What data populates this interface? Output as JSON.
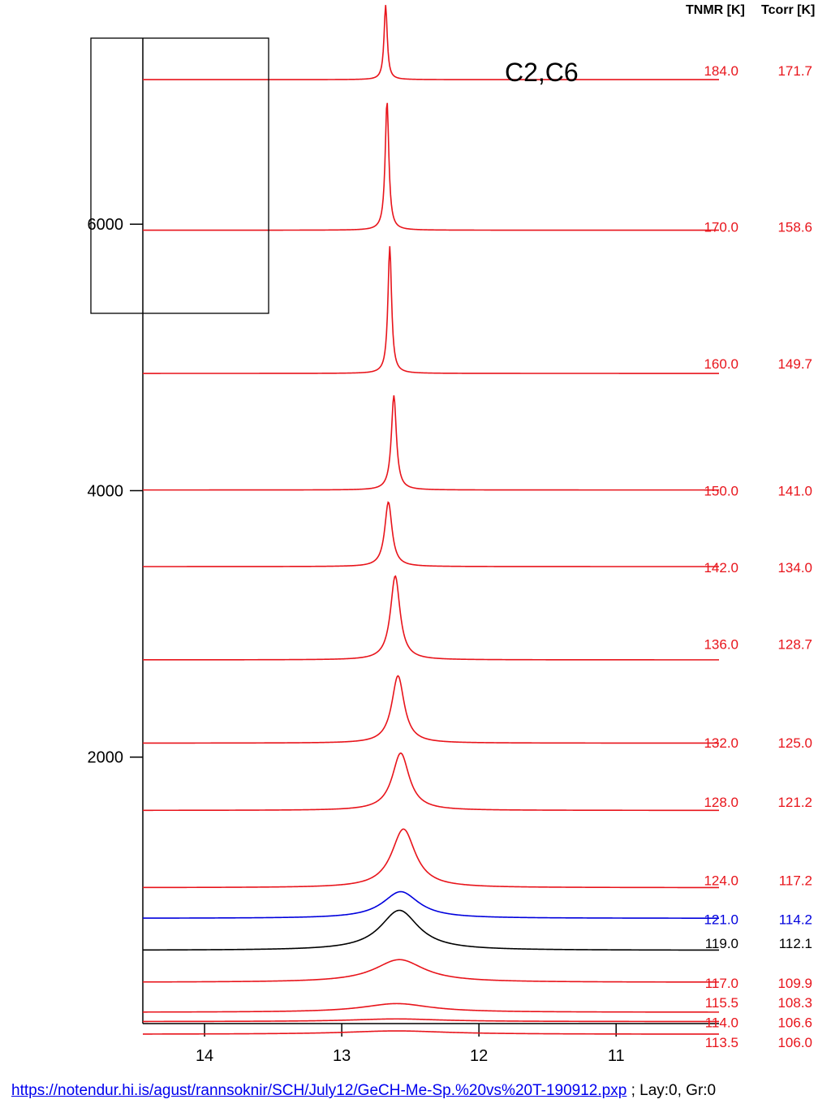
{
  "header": {
    "col1": "TNMR [K]",
    "col2": "Tcorr [K]"
  },
  "footer": {
    "link_text": "https://notendur.hi.is/agust/rannsoknir/SCH/July12/GeCH-Me-Sp.%20vs%20T-190912.pxp",
    "suffix": " ; Lay:0, Gr:0"
  },
  "chart_data": {
    "type": "line",
    "title": "C2,C6",
    "xlabel": "",
    "ylabel": "",
    "x_reversed": true,
    "xlim": [
      14.45,
      10.25
    ],
    "ylim": [
      0,
      7500
    ],
    "x_ticks": [
      14,
      13,
      12,
      11
    ],
    "y_ticks": [
      2000,
      4000,
      6000
    ],
    "grid": false,
    "series": [
      {
        "tnmr": "184.0",
        "tcorr": "171.7",
        "color": "#e8141b",
        "baseline": 7085,
        "peak_x": 12.68,
        "amplitude": 560,
        "width": 0.014,
        "label_offset": 75
      },
      {
        "tnmr": "170.0",
        "tcorr": "158.6",
        "color": "#e8141b",
        "baseline": 5955,
        "peak_x": 12.67,
        "amplitude": 970,
        "width": 0.016,
        "label_offset": 30
      },
      {
        "tnmr": "160.0",
        "tcorr": "149.7",
        "color": "#e8141b",
        "baseline": 4880,
        "peak_x": 12.65,
        "amplitude": 955,
        "width": 0.016,
        "label_offset": 80
      },
      {
        "tnmr": "150.0",
        "tcorr": "141.0",
        "color": "#e8141b",
        "baseline": 4005,
        "peak_x": 12.62,
        "amplitude": 710,
        "width": 0.022,
        "label_offset": 0
      },
      {
        "tnmr": "142.0",
        "tcorr": "134.0",
        "color": "#e8141b",
        "baseline": 3430,
        "peak_x": 12.66,
        "amplitude": 485,
        "width": 0.032,
        "label_offset": 0
      },
      {
        "tnmr": "136.0",
        "tcorr": "128.7",
        "color": "#e8141b",
        "baseline": 2730,
        "peak_x": 12.61,
        "amplitude": 630,
        "width": 0.042,
        "label_offset": 125
      },
      {
        "tnmr": "132.0",
        "tcorr": "125.0",
        "color": "#e8141b",
        "baseline": 2105,
        "peak_x": 12.59,
        "amplitude": 505,
        "width": 0.055,
        "label_offset": 10
      },
      {
        "tnmr": "128.0",
        "tcorr": "121.2",
        "color": "#e8141b",
        "baseline": 1600,
        "peak_x": 12.57,
        "amplitude": 430,
        "width": 0.075,
        "label_offset": 70
      },
      {
        "tnmr": "124.0",
        "tcorr": "117.2",
        "color": "#e8141b",
        "baseline": 1020,
        "peak_x": 12.55,
        "amplitude": 440,
        "width": 0.105,
        "label_offset": 60
      },
      {
        "tnmr": "121.0",
        "tcorr": "114.2",
        "color": "#0000dd",
        "baseline": 790,
        "peak_x": 12.57,
        "amplitude": 200,
        "width": 0.16,
        "label_offset": 0
      },
      {
        "tnmr": "119.0",
        "tcorr": "112.1",
        "color": "#000000",
        "baseline": 550,
        "peak_x": 12.58,
        "amplitude": 300,
        "width": 0.17,
        "label_offset": 60
      },
      {
        "tnmr": "117.0",
        "tcorr": "109.9",
        "color": "#e8141b",
        "baseline": 310,
        "peak_x": 12.58,
        "amplitude": 170,
        "width": 0.22,
        "label_offset": 0
      },
      {
        "tnmr": "115.5",
        "tcorr": "108.3",
        "color": "#e8141b",
        "baseline": 85,
        "peak_x": 12.6,
        "amplitude": 65,
        "width": 0.3,
        "label_offset": 80
      },
      {
        "tnmr": "114.0",
        "tcorr": "106.6",
        "color": "#e8141b",
        "baseline": 15,
        "peak_x": 12.6,
        "amplitude": 20,
        "width": 0.4,
        "label_offset": 0
      },
      {
        "tnmr": "113.5",
        "tcorr": "106.0",
        "color": "#e8141b",
        "baseline": -80,
        "peak_x": 12.6,
        "amplitude": 25,
        "width": 0.45,
        "label_offset": -55
      }
    ]
  }
}
